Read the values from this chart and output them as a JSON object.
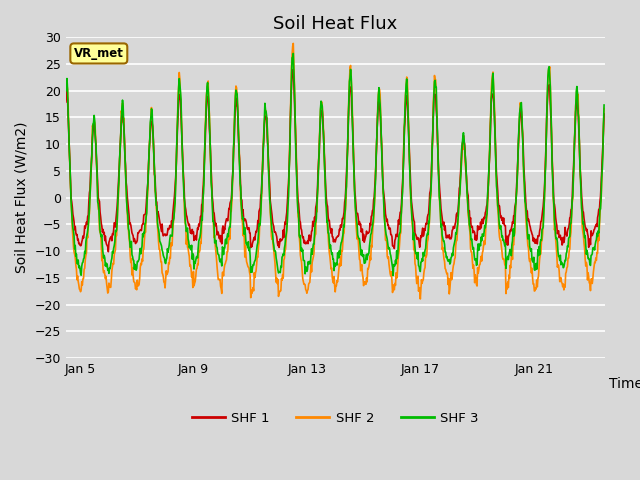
{
  "title": "Soil Heat Flux",
  "ylabel": "Soil Heat Flux (W/m2)",
  "xlabel": "Time",
  "ylim": [
    -30,
    30
  ],
  "xlim_days": [
    4.5,
    23.5
  ],
  "xtick_days": [
    5,
    9,
    13,
    17,
    21
  ],
  "xtick_labels": [
    "Jan 5",
    "Jan 9",
    "Jan 13",
    "Jan 17",
    "Jan 21"
  ],
  "ytick_step": 5,
  "colors": {
    "SHF 1": "#cc0000",
    "SHF 2": "#ff8800",
    "SHF 3": "#00bb00"
  },
  "watermark_text": "VR_met",
  "watermark_bg": "#ffff99",
  "watermark_border": "#996600",
  "bg_color": "#d8d8d8",
  "plot_bg": "#d8d8d8",
  "grid_color": "#ffffff",
  "title_fontsize": 13,
  "label_fontsize": 10,
  "tick_fontsize": 9,
  "line_width": 1.2,
  "figsize": [
    6.4,
    4.8
  ],
  "dpi": 100
}
